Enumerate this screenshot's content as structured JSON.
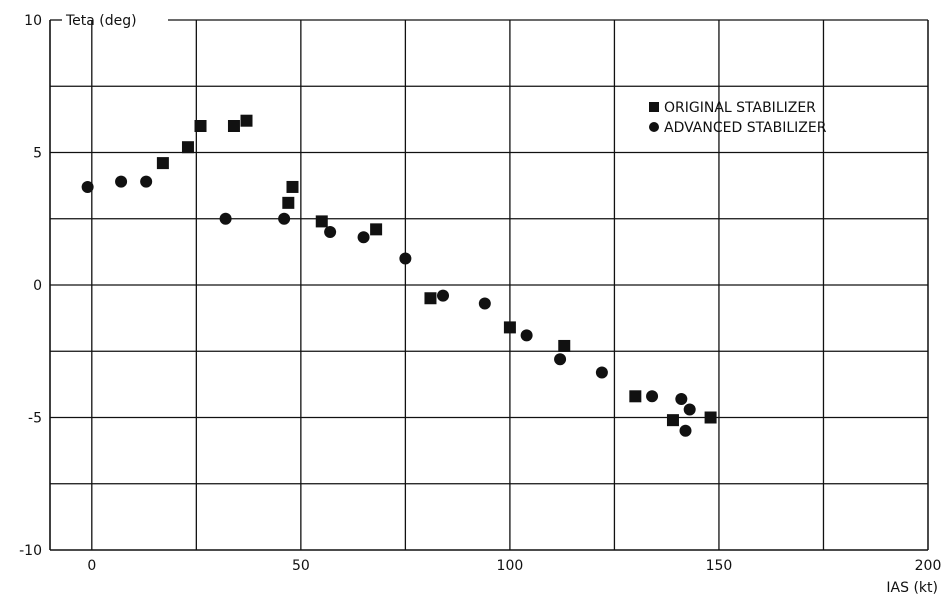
{
  "chart_data": {
    "type": "scatter",
    "title": "",
    "xlabel": "IAS (kt)",
    "ylabel": "Teta (deg)",
    "xlim": [
      -10,
      200
    ],
    "ylim": [
      -10,
      10
    ],
    "x_ticks": [
      0,
      50,
      100,
      150,
      200
    ],
    "y_ticks": [
      -10,
      -5,
      0,
      5,
      10
    ],
    "x_tick_labels": [
      "0",
      "50",
      "100",
      "150",
      "200"
    ],
    "y_tick_labels": [
      "-10",
      "-5",
      "0",
      "5",
      "10"
    ],
    "grid": true,
    "legend_position": "top-right",
    "series": [
      {
        "name": "ORIGINAL STABILIZER",
        "marker": "square",
        "color": "#111111",
        "x": [
          17,
          23,
          26,
          34,
          37,
          47,
          48,
          55,
          68,
          81,
          100,
          113,
          130,
          139,
          148
        ],
        "y": [
          4.6,
          5.2,
          6.0,
          6.0,
          6.2,
          3.1,
          3.7,
          2.4,
          2.1,
          -0.5,
          -1.6,
          -2.3,
          -4.2,
          -5.1,
          -5.0
        ]
      },
      {
        "name": "ADVANCED STABILIZER",
        "marker": "circle",
        "color": "#111111",
        "x": [
          -1,
          7,
          13,
          32,
          46,
          57,
          65,
          75,
          84,
          94,
          104,
          112,
          122,
          134,
          141,
          142,
          143
        ],
        "y": [
          3.7,
          3.9,
          3.9,
          2.5,
          2.5,
          2.0,
          1.8,
          1.0,
          -0.4,
          -0.7,
          -1.9,
          -2.8,
          -3.3,
          -4.2,
          -4.3,
          -5.5,
          -4.7
        ]
      }
    ]
  }
}
